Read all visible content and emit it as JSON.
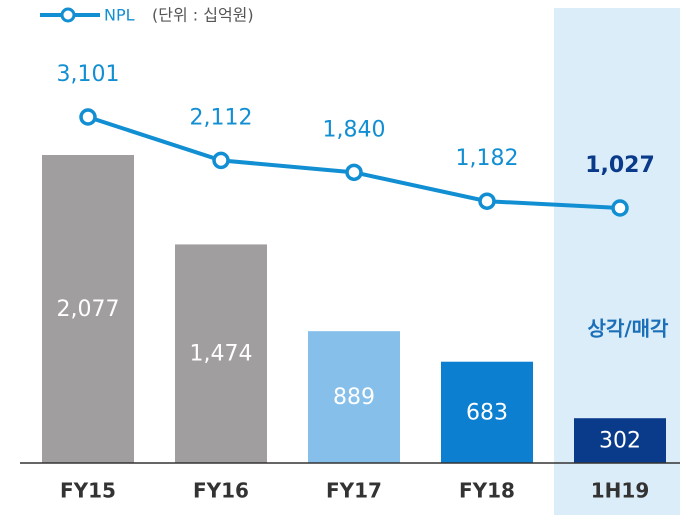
{
  "chart_data": {
    "type": "bar",
    "categories": [
      "FY15",
      "FY16",
      "FY17",
      "FY18",
      "1H19"
    ],
    "unit_label": "(단위 : 십억원)",
    "annotation": "상각/매각",
    "series": [
      {
        "type": "bar",
        "colors": [
          "#a09e9f",
          "#a09e9f",
          "#85bfea",
          "#0d7fd0",
          "#0a3a8a"
        ],
        "values": [
          2077,
          1474,
          889,
          683,
          302
        ],
        "value_labels": [
          "2,077",
          "1,474",
          "889",
          "683",
          "302"
        ]
      },
      {
        "type": "line",
        "name": "NPL",
        "color": "#128fd2",
        "values": [
          3101,
          2112,
          1840,
          1182,
          1027
        ],
        "value_labels": [
          "3,101",
          "2,112",
          "1,840",
          "1,182",
          "1,027"
        ]
      }
    ]
  }
}
